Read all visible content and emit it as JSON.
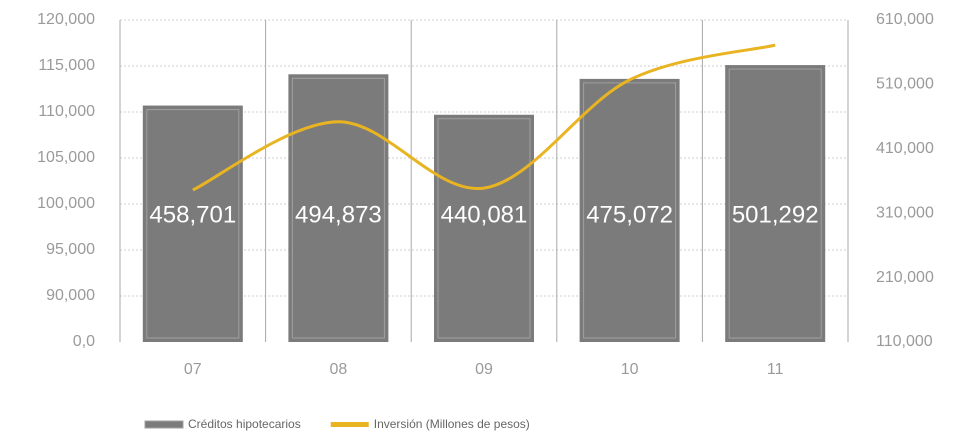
{
  "chart_data": {
    "type": "bar_line",
    "categories": [
      "07",
      "08",
      "09",
      "10",
      "11"
    ],
    "series": [
      {
        "name": "Créditos hipotecarios",
        "type": "bar",
        "color": "#7b7b7b",
        "values": [
          110700,
          114100,
          109700,
          113600,
          115100
        ]
      },
      {
        "name": "Inversión (Millones de pesos)",
        "type": "line",
        "color": "#e8b422",
        "axis": "y2",
        "values": [
          346000,
          452000,
          349000,
          517000,
          571000
        ]
      }
    ],
    "annotations": [
      "458,701",
      "494,873",
      "440,081",
      "475,072",
      "501,292"
    ],
    "ylim": [
      0,
      120000
    ],
    "axis_break": true,
    "yticks": [
      {
        "value": 0,
        "label": "0,0"
      },
      {
        "value": 90000,
        "label": "90,000"
      },
      {
        "value": 95000,
        "label": "95,000"
      },
      {
        "value": 100000,
        "label": "100,000"
      },
      {
        "value": 105000,
        "label": "105,000"
      },
      {
        "value": 110000,
        "label": "110,000"
      },
      {
        "value": 115000,
        "label": "115,000"
      },
      {
        "value": 120000,
        "label": "120,000"
      }
    ],
    "y2lim": [
      110000,
      610000
    ],
    "y2ticks": [
      {
        "value": 110000,
        "label": "110,000"
      },
      {
        "value": 210000,
        "label": "210,000"
      },
      {
        "value": 310000,
        "label": "310,000"
      },
      {
        "value": 410000,
        "label": "410,000"
      },
      {
        "value": 510000,
        "label": "510,000"
      },
      {
        "value": 610000,
        "label": "610,000"
      }
    ],
    "grid": true
  }
}
